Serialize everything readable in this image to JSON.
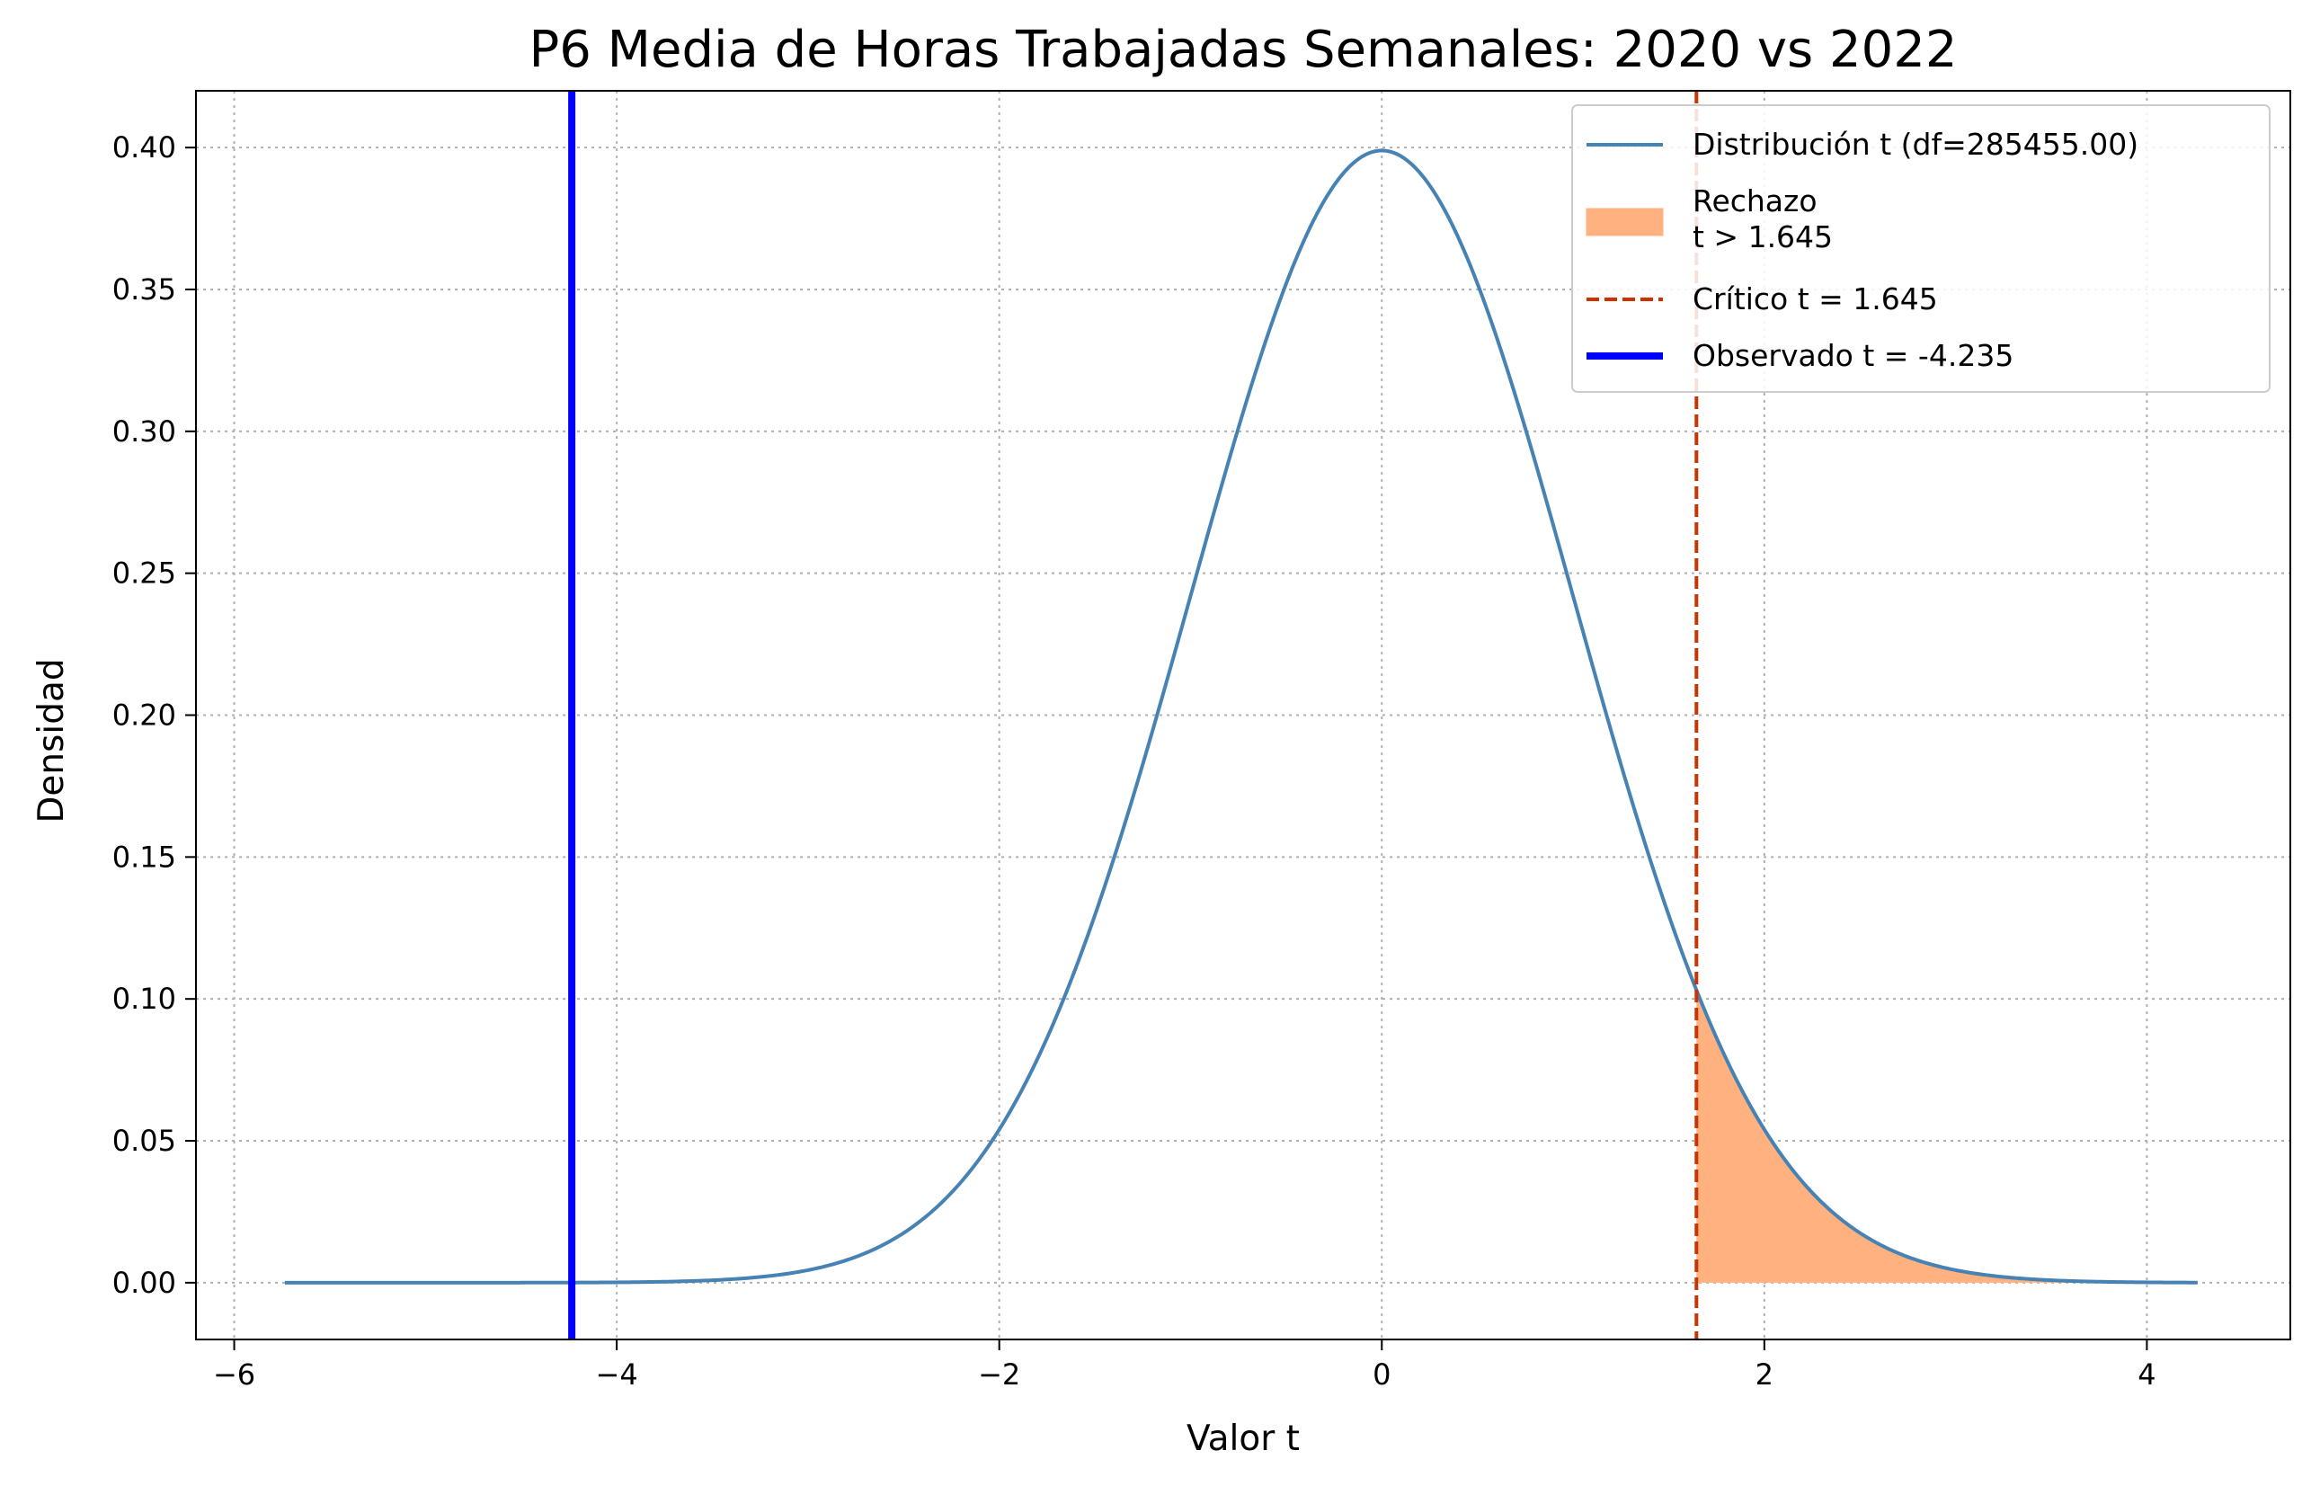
{
  "chart_data": {
    "type": "line",
    "title": "P6 Media de Horas Trabajadas Semanales: 2020 vs 2022",
    "xlabel": "Valor t",
    "ylabel": "Densidad",
    "xlim": [
      -6.2,
      4.75
    ],
    "ylim": [
      -0.02,
      0.42
    ],
    "x_ticks": [
      -6,
      -4,
      -2,
      0,
      2,
      4
    ],
    "x_tick_labels": [
      "−6",
      "−4",
      "−2",
      "0",
      "2",
      "4"
    ],
    "y_ticks": [
      0.0,
      0.05,
      0.1,
      0.15,
      0.2,
      0.25,
      0.3,
      0.35,
      0.4
    ],
    "y_tick_labels": [
      "0.00",
      "0.05",
      "0.10",
      "0.15",
      "0.20",
      "0.25",
      "0.30",
      "0.35",
      "0.40"
    ],
    "grid": true,
    "legend_position": "top-right",
    "distribution": {
      "name": "Distribución t (df=285455.00)",
      "df": 285455.0,
      "x_range": [
        -5.735,
        4.265
      ],
      "color": "#4682b4"
    },
    "rejection_region": {
      "name": "Rechazo\nt > 1.645",
      "from": 1.645,
      "color": "#ffb27f"
    },
    "critical": {
      "name": "Crítico t = 1.645",
      "value": 1.645,
      "color": "#cc3300"
    },
    "observed": {
      "name": "Observado t = -4.235",
      "value": -4.235,
      "color": "#0000ff"
    }
  }
}
